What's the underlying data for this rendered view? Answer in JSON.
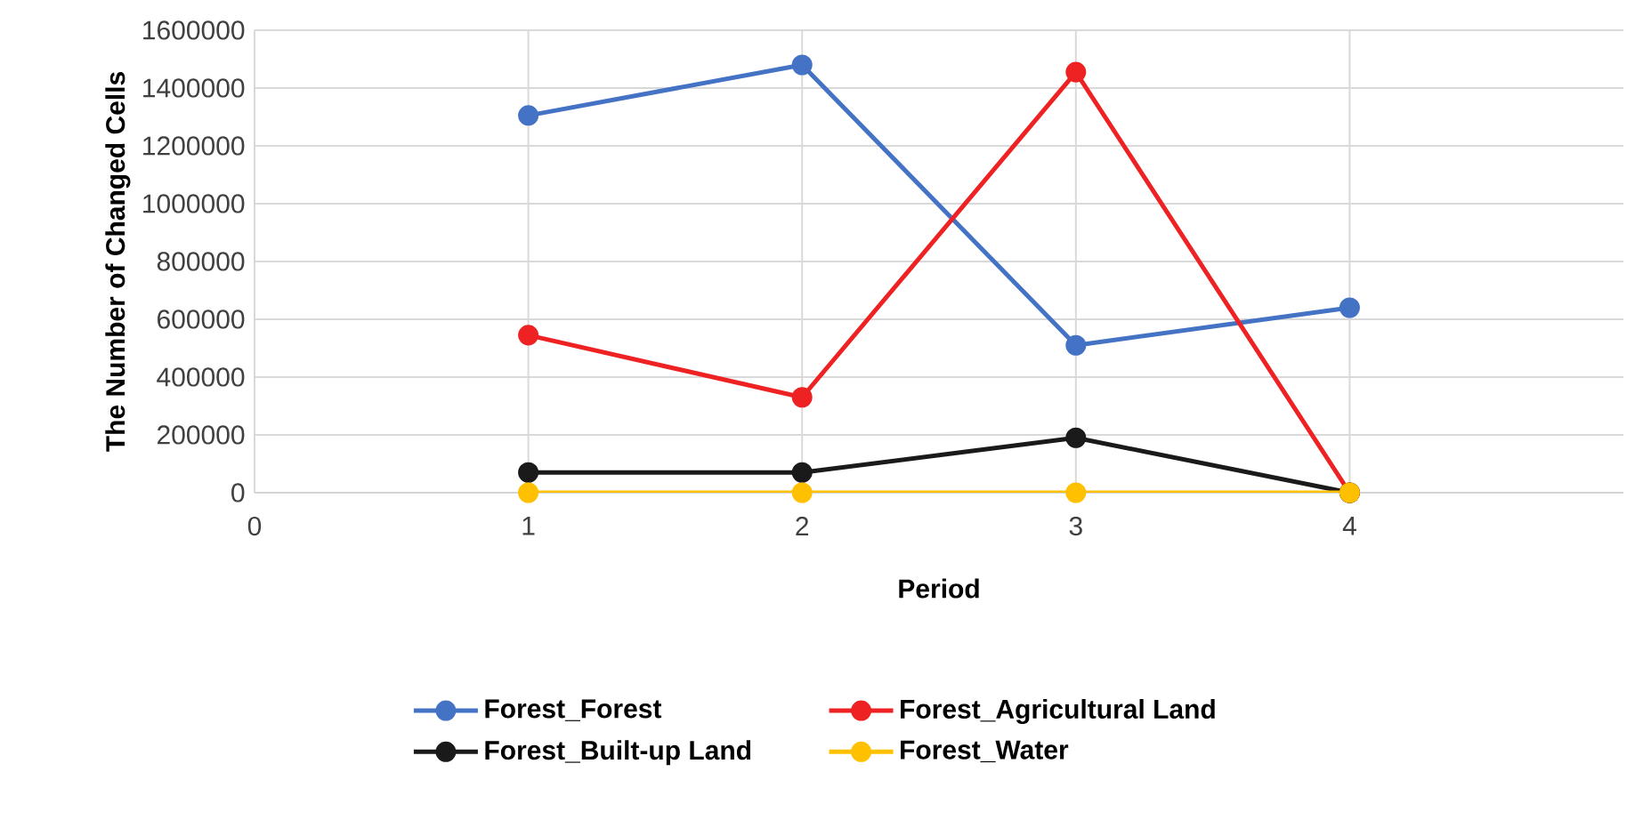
{
  "chart_data": {
    "type": "line",
    "xlabel": "Period",
    "ylabel": "The Number of Changed Cells",
    "x": [
      1,
      2,
      3,
      4
    ],
    "series": [
      {
        "name": "Forest_Forest",
        "color": "#4472c4",
        "values": [
          1305000,
          1480000,
          510000,
          640000
        ]
      },
      {
        "name": "Forest_Agricultural Land",
        "color": "#ee2222",
        "values": [
          545000,
          330000,
          1455000,
          0
        ]
      },
      {
        "name": "Forest_Built-up Land",
        "color": "#1a1a1a",
        "values": [
          70000,
          70000,
          190000,
          0
        ]
      },
      {
        "name": "Forest_Water",
        "color": "#ffc000",
        "values": [
          0,
          0,
          0,
          0
        ]
      }
    ],
    "xlim": [
      0,
      5
    ],
    "xticks": [
      0,
      1,
      2,
      3,
      4
    ],
    "ylim": [
      0,
      1600000
    ],
    "yticks": [
      0,
      200000,
      400000,
      600000,
      800000,
      1000000,
      1200000,
      1400000,
      1600000
    ],
    "grid": true,
    "legend": "bottom",
    "marker": "circle",
    "line_style": "solid"
  }
}
